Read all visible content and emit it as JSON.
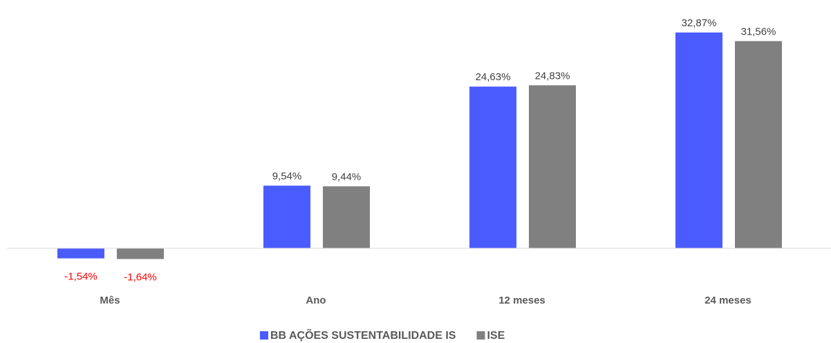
{
  "chart_data": {
    "type": "bar",
    "categories": [
      "Mês",
      "Ano",
      "12 meses",
      "24 meses"
    ],
    "series": [
      {
        "name": "BB AÇÕES SUSTENTABILIDADE IS",
        "color": "#4a5cff",
        "values": [
          -1.54,
          9.54,
          24.63,
          32.87
        ],
        "value_labels": [
          "-1,54%",
          "9,54%",
          "24,63%",
          "32,87%"
        ]
      },
      {
        "name": "ISE",
        "color": "#808080",
        "values": [
          -1.64,
          9.44,
          24.83,
          31.56
        ],
        "value_labels": [
          "-1,64%",
          "9,44%",
          "24,83%",
          "31,56%"
        ]
      }
    ],
    "legend": "bottom"
  }
}
